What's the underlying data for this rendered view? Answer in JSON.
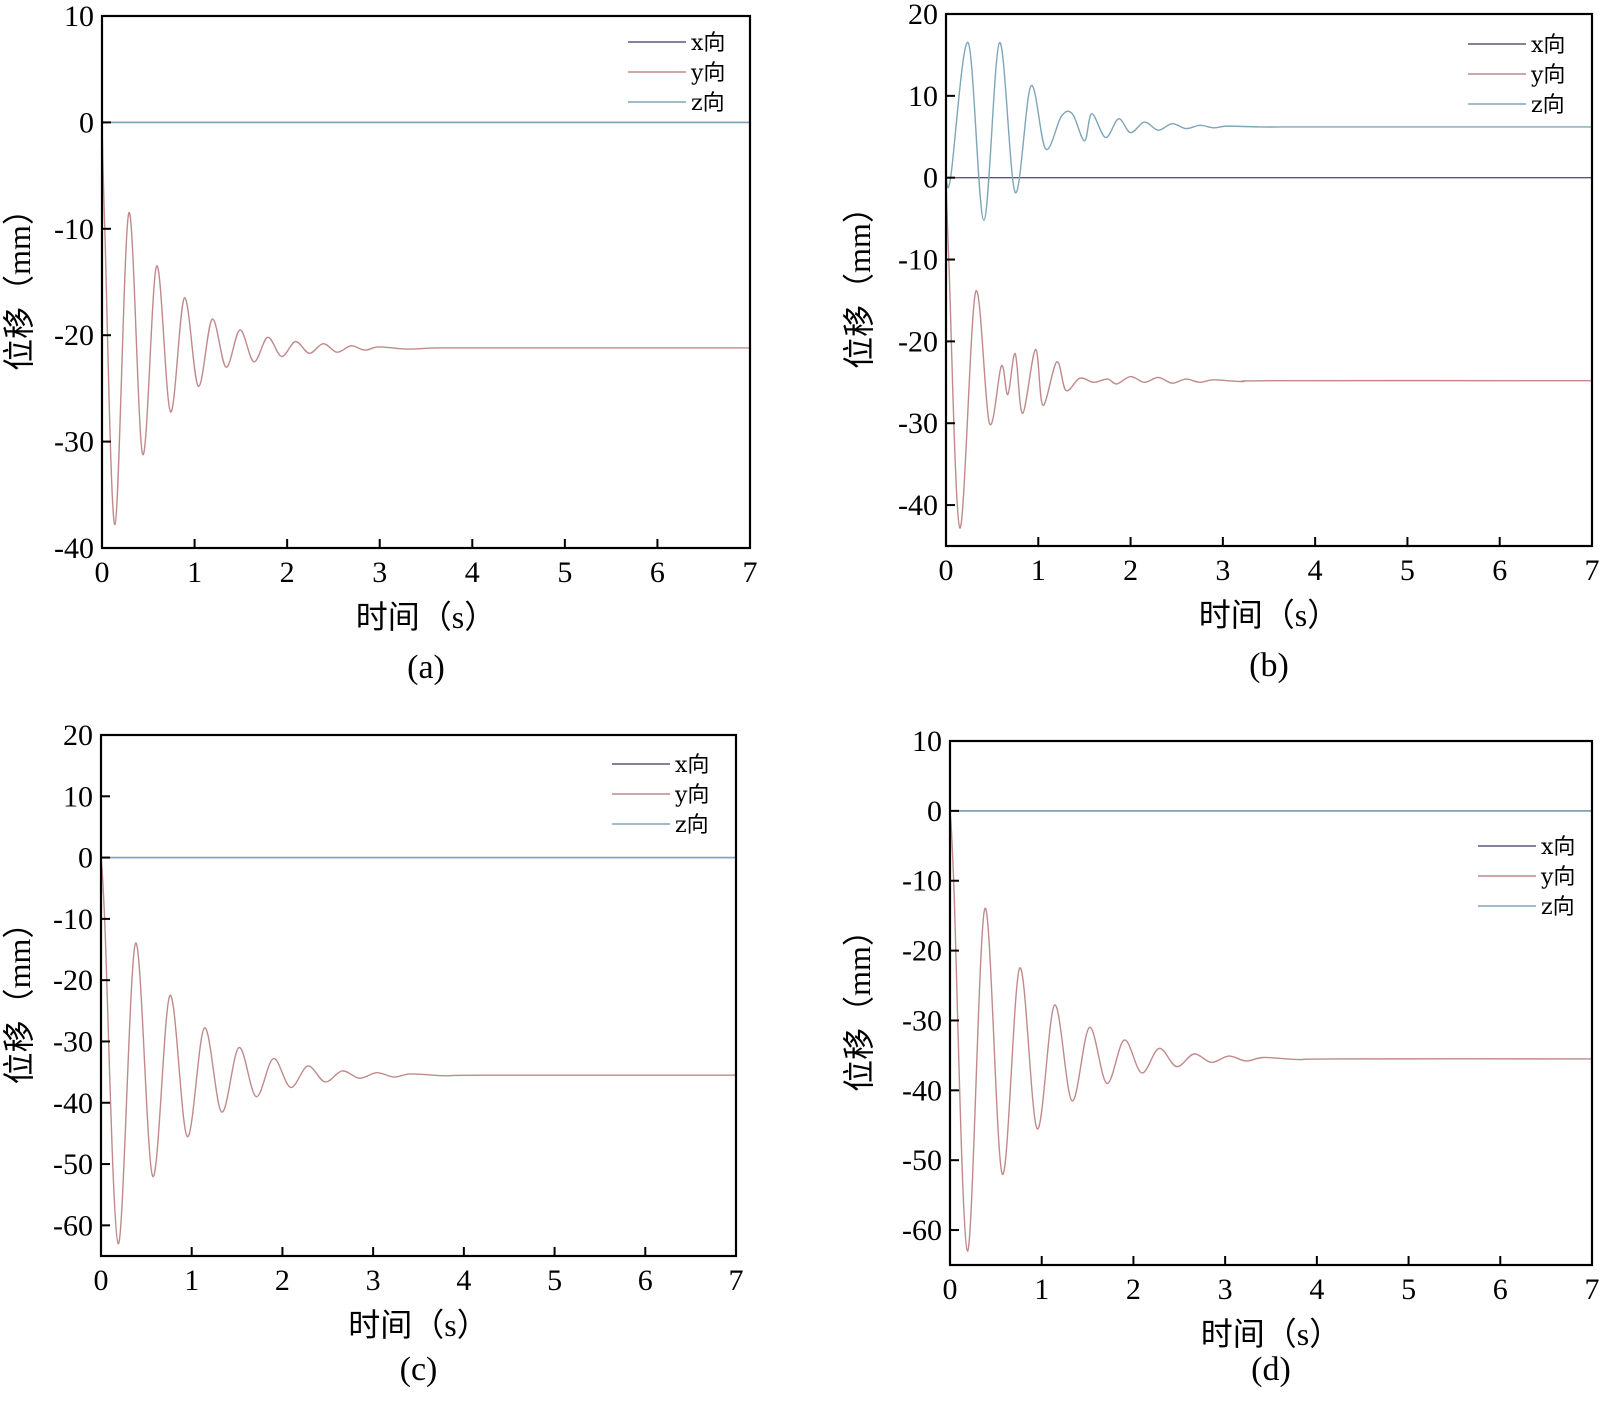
{
  "colors": {
    "x": "#5a5a7a",
    "y": "#c08a8a",
    "z": "#7fa6b8",
    "axis": "#000000"
  },
  "chart_data": [
    {
      "type": "line",
      "caption": "(a)",
      "xlabel": "时间（s）",
      "ylabel": "位移（mm）",
      "xlim": [
        0,
        7
      ],
      "ylim": [
        -40,
        10
      ],
      "xticks": [
        0,
        1,
        2,
        3,
        4,
        5,
        6,
        7
      ],
      "yticks": [
        -40,
        -30,
        -20,
        -10,
        0,
        10
      ],
      "legend_position": "top-right",
      "series": [
        {
          "name": "x向",
          "color_key": "x",
          "x": [
            0,
            7
          ],
          "y": [
            0,
            0
          ]
        },
        {
          "name": "y向",
          "color_key": "y",
          "x": [
            0,
            0.03,
            0.14,
            0.29,
            0.44,
            0.59,
            0.74,
            0.89,
            1.04,
            1.19,
            1.34,
            1.49,
            1.64,
            1.79,
            1.94,
            2.09,
            2.24,
            2.39,
            2.54,
            2.69,
            2.84,
            2.99,
            3.3,
            3.6,
            4.0,
            7.0
          ],
          "y": [
            0,
            -10,
            -37.8,
            -8.5,
            -31.2,
            -13.5,
            -27.2,
            -16.5,
            -24.8,
            -18.5,
            -23.0,
            -19.5,
            -22.5,
            -20.2,
            -22.0,
            -20.6,
            -21.7,
            -20.8,
            -21.6,
            -21.0,
            -21.4,
            -21.1,
            -21.3,
            -21.2,
            -21.2,
            -21.2
          ]
        },
        {
          "name": "z向",
          "color_key": "z",
          "x": [
            0,
            7
          ],
          "y": [
            0,
            0
          ]
        }
      ]
    },
    {
      "type": "line",
      "caption": "(b)",
      "xlabel": "时间（s）",
      "ylabel": "位移（mm）",
      "xlim": [
        0,
        7
      ],
      "ylim": [
        -45,
        20
      ],
      "xticks": [
        0,
        1,
        2,
        3,
        4,
        5,
        6,
        7
      ],
      "yticks": [
        -40,
        -30,
        -20,
        -10,
        0,
        10,
        20
      ],
      "legend_position": "top-right",
      "series": [
        {
          "name": "x向",
          "color_key": "x",
          "x": [
            0,
            7
          ],
          "y": [
            0,
            0
          ]
        },
        {
          "name": "y向",
          "color_key": "y",
          "x": [
            0,
            0.03,
            0.15,
            0.32,
            0.47,
            0.6,
            0.67,
            0.75,
            0.83,
            0.97,
            1.05,
            1.2,
            1.3,
            1.45,
            1.6,
            1.75,
            1.85,
            2.0,
            2.15,
            2.3,
            2.45,
            2.6,
            2.75,
            2.9,
            3.2,
            3.6,
            7.0
          ],
          "y": [
            0,
            -10,
            -42.8,
            -14.0,
            -30.0,
            -23.0,
            -26.5,
            -21.5,
            -28.8,
            -21.0,
            -27.8,
            -22.5,
            -26.0,
            -24.5,
            -25.0,
            -24.6,
            -25.2,
            -24.3,
            -25.0,
            -24.4,
            -25.1,
            -24.6,
            -25.0,
            -24.7,
            -24.9,
            -24.8,
            -24.8
          ]
        },
        {
          "name": "z向",
          "color_key": "z",
          "x": [
            0,
            0.05,
            0.24,
            0.41,
            0.58,
            0.75,
            0.92,
            1.08,
            1.25,
            1.37,
            1.5,
            1.58,
            1.73,
            1.87,
            2.0,
            2.15,
            2.3,
            2.45,
            2.6,
            2.75,
            2.9,
            3.05,
            3.4,
            3.8,
            4.4,
            7.0
          ],
          "y": [
            0,
            0,
            16.5,
            -5.2,
            16.5,
            -1.8,
            11.2,
            3.5,
            7.5,
            7.8,
            4.5,
            7.8,
            4.9,
            7.2,
            5.5,
            6.8,
            5.8,
            6.6,
            6.0,
            6.4,
            6.1,
            6.3,
            6.2,
            6.2,
            6.2,
            6.2
          ]
        }
      ]
    },
    {
      "type": "line",
      "caption": "(c)",
      "xlabel": "时间（s）",
      "ylabel": "位移（mm）",
      "xlim": [
        0,
        7
      ],
      "ylim": [
        -65,
        20
      ],
      "xticks": [
        0,
        1,
        2,
        3,
        4,
        5,
        6,
        7
      ],
      "yticks": [
        -60,
        -50,
        -40,
        -30,
        -20,
        -10,
        0,
        10,
        20
      ],
      "legend_position": "top-right",
      "series": [
        {
          "name": "x向",
          "color_key": "x",
          "x": [
            0,
            7
          ],
          "y": [
            0,
            0
          ]
        },
        {
          "name": "y向",
          "color_key": "y",
          "x": [
            0,
            0.04,
            0.19,
            0.38,
            0.57,
            0.76,
            0.95,
            1.14,
            1.33,
            1.52,
            1.71,
            1.9,
            2.09,
            2.28,
            2.47,
            2.66,
            2.85,
            3.04,
            3.23,
            3.42,
            3.8,
            4.2,
            7.0
          ],
          "y": [
            0,
            -10,
            -63.0,
            -14.0,
            -52.0,
            -22.5,
            -45.5,
            -27.8,
            -41.5,
            -31.0,
            -39.0,
            -32.8,
            -37.5,
            -34.0,
            -36.6,
            -34.8,
            -36.0,
            -35.1,
            -35.8,
            -35.3,
            -35.6,
            -35.5,
            -35.5
          ]
        },
        {
          "name": "z向",
          "color_key": "z",
          "x": [
            0,
            7
          ],
          "y": [
            0,
            0
          ]
        }
      ]
    },
    {
      "type": "line",
      "caption": "(d)",
      "xlabel": "时间（s）",
      "ylabel": "位移（mm）",
      "xlim": [
        0,
        7
      ],
      "ylim": [
        -65,
        10
      ],
      "xticks": [
        0,
        1,
        2,
        3,
        4,
        5,
        6,
        7
      ],
      "yticks": [
        -60,
        -50,
        -40,
        -30,
        -20,
        -10,
        0,
        10
      ],
      "legend_position": "right",
      "series": [
        {
          "name": "x向",
          "color_key": "x",
          "x": [
            0,
            7
          ],
          "y": [
            0,
            0
          ]
        },
        {
          "name": "y向",
          "color_key": "y",
          "x": [
            0,
            0.04,
            0.19,
            0.38,
            0.57,
            0.76,
            0.95,
            1.14,
            1.33,
            1.52,
            1.71,
            1.9,
            2.09,
            2.28,
            2.47,
            2.66,
            2.85,
            3.04,
            3.23,
            3.42,
            3.8,
            4.2,
            7.0
          ],
          "y": [
            0,
            -10,
            -63.0,
            -14.0,
            -52.0,
            -22.5,
            -45.5,
            -27.8,
            -41.5,
            -31.0,
            -39.0,
            -32.8,
            -37.5,
            -34.0,
            -36.6,
            -34.8,
            -36.0,
            -35.1,
            -35.8,
            -35.3,
            -35.6,
            -35.5,
            -35.5
          ]
        },
        {
          "name": "z向",
          "color_key": "z",
          "x": [
            0,
            7
          ],
          "y": [
            0,
            0
          ]
        }
      ]
    }
  ]
}
